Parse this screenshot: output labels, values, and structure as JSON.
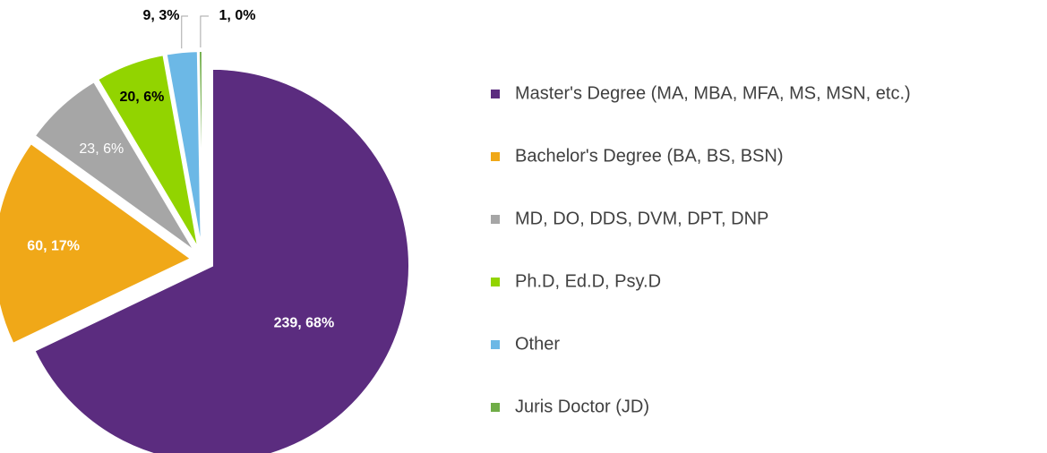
{
  "chart_data": {
    "type": "pie",
    "categories": [
      "Master's Degree (MA, MBA, MFA, MS, MSN, etc.)",
      "Bachelor's Degree (BA, BS, BSN)",
      "MD, DO, DDS, DVM, DPT, DNP",
      "Ph.D, Ed.D, Psy.D",
      "Other",
      "Juris Doctor (JD)"
    ],
    "values": [
      239,
      60,
      23,
      20,
      9,
      1
    ],
    "value_labels": [
      "239, 68%",
      "60, 17%",
      "23, 6%",
      "20, 6%",
      "9, 3%",
      "1, 0%"
    ],
    "colors": [
      "#5b2c7f",
      "#f0a818",
      "#a6a6a6",
      "#92d400",
      "#6cb8e6",
      "#70ad47"
    ],
    "legend": "right"
  }
}
